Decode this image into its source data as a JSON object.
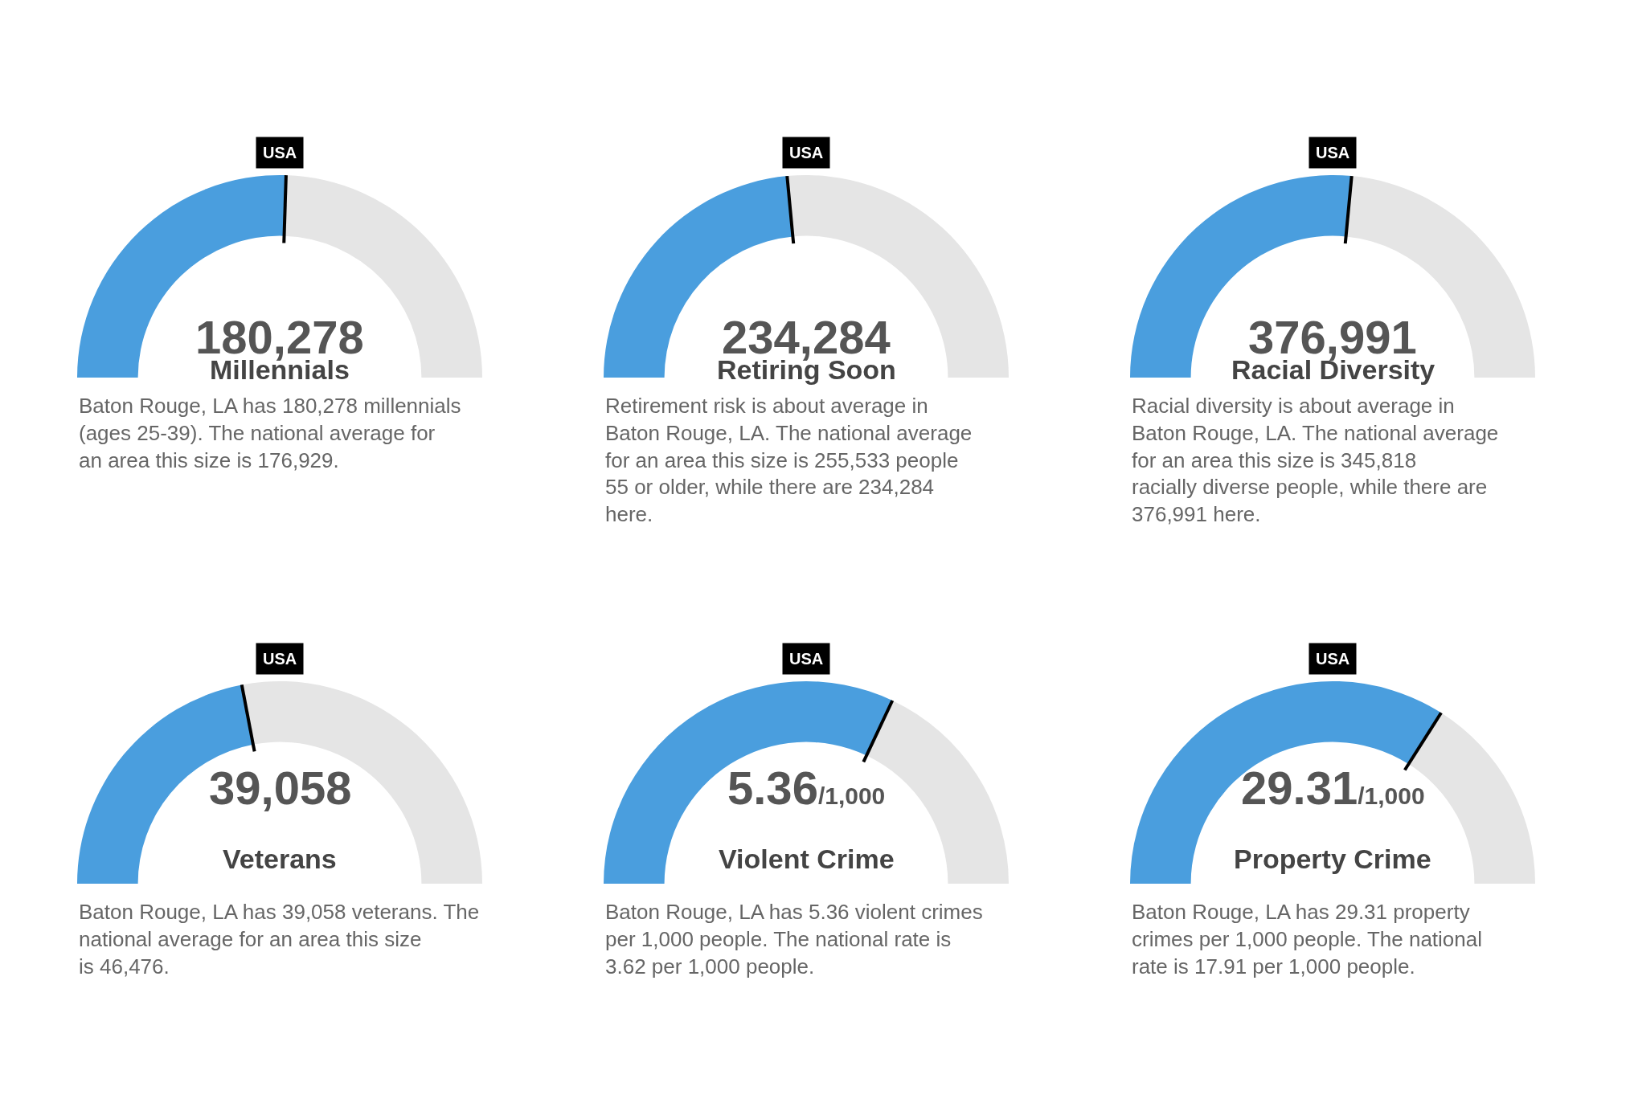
{
  "chart_data": [
    {
      "type": "donut",
      "title": "Millennials",
      "categories": [
        null,
        null
      ],
      "values": [
        51,
        49
      ],
      "colors": [
        "#4a9ede",
        "#e5e5e5"
      ],
      "annotations": [
        "180,278",
        "Baton Rouge, LA has 180,278 millennials (ages 25-39). The national average for an area this size is 176,929.",
        "USA"
      ]
    },
    {
      "type": "donut",
      "title": "Retiring Soon",
      "categories": [
        null,
        null
      ],
      "values": [
        47,
        53
      ],
      "colors": [
        "#4a9ede",
        "#e5e5e5"
      ],
      "annotations": [
        "234,284",
        "Retirement risk is about average in Baton Rouge, LA. The national average for an area this size is 255,533 people 55 or older, while there are 234,284 here.",
        "USA"
      ]
    },
    {
      "type": "donut",
      "title": "Racial Diversity",
      "categories": [
        null,
        null
      ],
      "values": [
        53,
        47
      ],
      "colors": [
        "#4a9ede",
        "#e5e5e5"
      ],
      "annotations": [
        "376,991",
        "Racial diversity is about average in Baton Rouge, LA. The national average for an area this size is 345,818 racially diverse people, while there are 376,991 here.",
        "USA"
      ]
    },
    {
      "type": "donut",
      "title": "Veterans",
      "categories": [
        null,
        null
      ],
      "values": [
        44,
        56
      ],
      "colors": [
        "#4a9ede",
        "#e5e5e5"
      ],
      "annotations": [
        "39,058",
        "Baton Rouge, LA has 39,058 veterans. The national average for an area this size is 46,476.",
        "USA"
      ]
    },
    {
      "type": "donut",
      "title": "Violent Crime",
      "categories": [
        null,
        null
      ],
      "values": [
        64,
        36
      ],
      "colors": [
        "#4a9ede",
        "#e5e5e5"
      ],
      "annotations": [
        "5.36/1,000",
        "Baton Rouge, LA has 5.36 violent crimes per 1,000 people. The national rate is 3.62 per 1,000 people.",
        "USA"
      ]
    },
    {
      "type": "donut",
      "title": "Property Crime",
      "categories": [
        null,
        null
      ],
      "values": [
        68,
        32
      ],
      "colors": [
        "#4a9ede",
        "#e5e5e5"
      ],
      "annotations": [
        "29.31/1,000",
        "Baton Rouge, LA has 29.31 property crimes per 1,000 people. The national rate is 17.91 per 1,000 people.",
        "USA"
      ]
    }
  ]
}
